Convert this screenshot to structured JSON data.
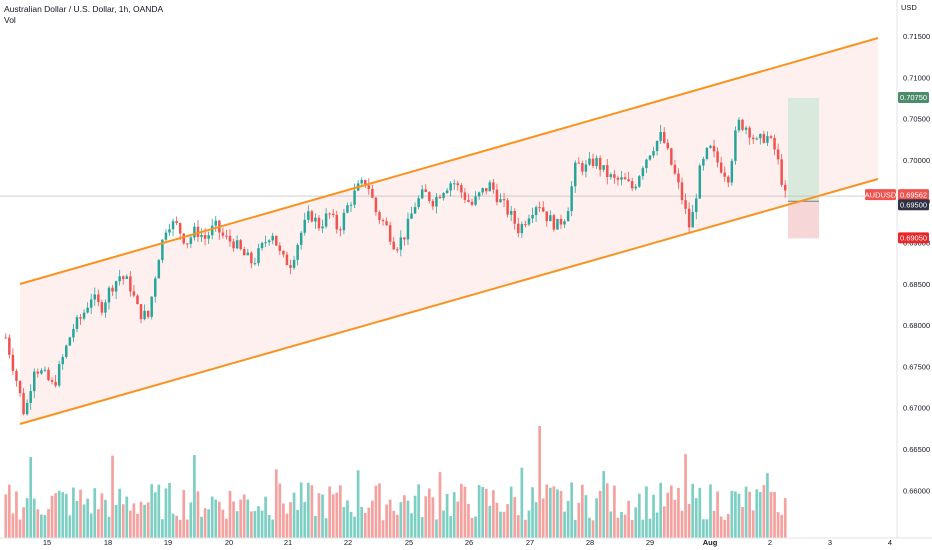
{
  "header": {
    "title": "Australian Dollar / U.S. Dollar, 1h, OANDA",
    "volume_label": "Vol"
  },
  "price_axis": {
    "currency": "USD",
    "ticks": [
      "0.71500",
      "0.71000",
      "0.70500",
      "0.70000",
      "0.69500",
      "0.69000",
      "0.68500",
      "0.68000",
      "0.67500",
      "0.67000",
      "0.66500",
      "0.66000"
    ]
  },
  "time_axis": {
    "labels": [
      "15",
      "18",
      "19",
      "20",
      "21",
      "22",
      "25",
      "26",
      "27",
      "28",
      "29",
      "Aug",
      "2",
      "3",
      "4"
    ]
  },
  "price_tags": [
    {
      "name": "take-profit-tag",
      "text": "0.70750",
      "color": "#4c8c6c"
    },
    {
      "name": "symbol-tag",
      "text": "AUDUSD",
      "color": "#ef5350"
    },
    {
      "name": "last-price-tag",
      "text": "0.69562",
      "color": "#ef5350"
    },
    {
      "name": "countdown-tag",
      "text": "44:12",
      "color": "#ef5350"
    },
    {
      "name": "entry-tag",
      "text": "0.69500",
      "color": "#2f3243"
    },
    {
      "name": "stop-loss-tag",
      "text": "0.69050",
      "color": "#e62828"
    }
  ],
  "colors": {
    "up": "#26a69a",
    "down": "#ef5350",
    "channel": "#f7931e",
    "channel_fill": "#fdebe9",
    "tp_zone": "#d9eadc",
    "sl_zone": "#f6d6d6"
  },
  "chart_data": {
    "type": "candlestick",
    "symbol": "AUDUSD",
    "source": "OANDA",
    "timeframe": "1h",
    "y_range": [
      0.6553,
      0.7193
    ],
    "x_dates": [
      "15",
      "18",
      "19",
      "20",
      "21",
      "22",
      "25",
      "26",
      "27",
      "28",
      "29",
      "Aug",
      "2"
    ],
    "approx_close_path": [
      [
        0.6785,
        0.674,
        0.669,
        0.675,
        0.674,
        0.6725,
        0.676,
        0.6795,
        0.681,
        0.6835
      ],
      [
        0.682,
        0.6845,
        0.686,
        0.685,
        0.6815,
        0.681,
        0.688,
        0.6925,
        0.692,
        0.69
      ],
      [
        0.6915,
        0.6905,
        0.692,
        0.6905,
        0.69,
        0.6885,
        0.6875,
        0.6895,
        0.6915,
        0.688
      ],
      [
        0.6875,
        0.691,
        0.6935,
        0.692,
        0.6935,
        0.6915,
        0.6945,
        0.6965,
        0.6975,
        0.6935
      ],
      [
        0.692,
        0.6895,
        0.691,
        0.6945,
        0.696,
        0.695,
        0.6965,
        0.6975,
        0.696,
        0.6945
      ],
      [
        0.696,
        0.697,
        0.695,
        0.6935,
        0.6915,
        0.6935,
        0.695,
        0.693,
        0.692,
        0.6935
      ],
      [
        0.6995,
        0.699,
        0.7,
        0.6985,
        0.6975,
        0.6975,
        0.6965,
        0.6995,
        0.7015,
        0.703
      ],
      [
        0.6995,
        0.696,
        0.6915,
        0.6985,
        0.7015,
        0.6995,
        0.698,
        0.7045,
        0.704,
        0.702
      ],
      [
        0.703,
        0.701,
        0.6956
      ]
    ],
    "channel": {
      "upper": {
        "start": [
          "15",
          0.69
        ],
        "end": [
          "3",
          0.715
        ]
      },
      "lower": {
        "start": [
          "15",
          0.668
        ],
        "end": [
          "3",
          0.698
        ]
      }
    },
    "position": {
      "entry": 0.695,
      "take_profit": 0.7075,
      "stop_loss": 0.6905
    },
    "last_price": 0.69562
  }
}
